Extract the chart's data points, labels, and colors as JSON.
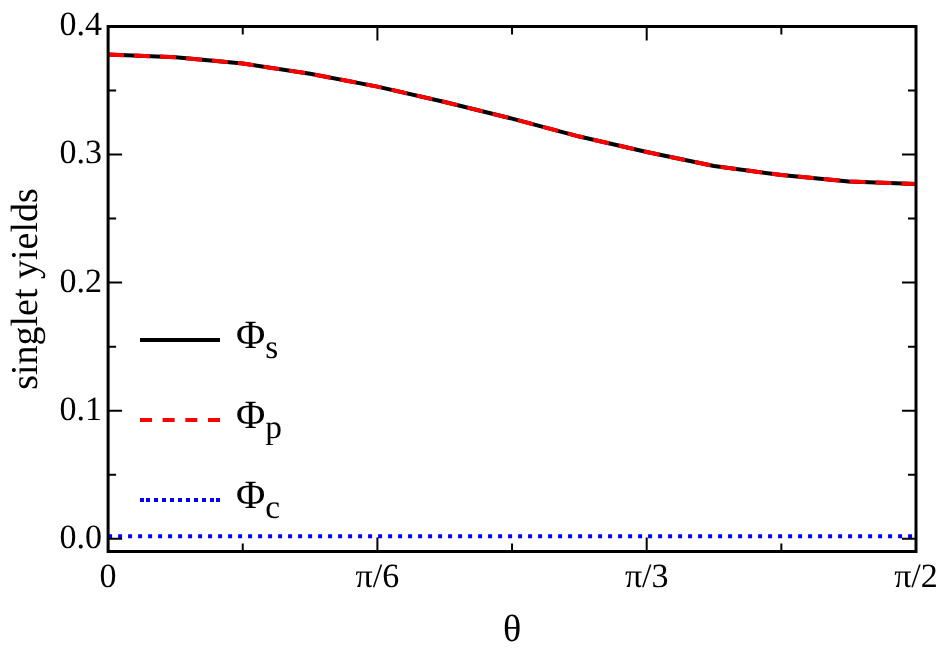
{
  "chart_data": {
    "type": "line",
    "xlabel": "θ",
    "ylabel": "singlet yields",
    "x": [
      0,
      0.1309,
      0.2618,
      0.3927,
      0.5236,
      0.6545,
      0.7854,
      0.9163,
      1.0472,
      1.1781,
      1.309,
      1.4399,
      1.5708
    ],
    "series": [
      {
        "name": "Φ$_{s}$",
        "color": "#000000",
        "line_style": "solid",
        "values": [
          0.378,
          0.376,
          0.371,
          0.363,
          0.353,
          0.341,
          0.328,
          0.314,
          0.302,
          0.291,
          0.284,
          0.279,
          0.277
        ]
      },
      {
        "name": "Φ$_{p}$",
        "color": "#ff0000",
        "line_style": "dashed",
        "values": [
          0.378,
          0.376,
          0.371,
          0.363,
          0.353,
          0.341,
          0.328,
          0.314,
          0.302,
          0.291,
          0.284,
          0.279,
          0.277
        ]
      },
      {
        "name": "Φ$_{c}$",
        "color": "#0000ff",
        "line_style": "dotted",
        "values": [
          0.002,
          0.002,
          0.002,
          0.002,
          0.002,
          0.002,
          0.002,
          0.002,
          0.002,
          0.002,
          0.002,
          0.002,
          0.002
        ]
      }
    ],
    "xlim": [
      0,
      1.5708
    ],
    "xticks": [
      {
        "value": 0,
        "label": "0"
      },
      {
        "value": 0.2618,
        "label": null
      },
      {
        "value": 0.5236,
        "label": "π/6"
      },
      {
        "value": 0.7854,
        "label": null
      },
      {
        "value": 1.0472,
        "label": "π/3"
      },
      {
        "value": 1.309,
        "label": null
      },
      {
        "value": 1.5708,
        "label": "π/2"
      }
    ],
    "ylim": [
      -0.01,
      0.4
    ],
    "yticks": [
      {
        "value": 0,
        "label": "0.0"
      },
      {
        "value": 0.05,
        "label": null
      },
      0.1,
      {
        "value": 0.15,
        "label": null
      },
      0.2,
      {
        "value": 0.25,
        "label": null
      },
      0.3,
      {
        "value": 0.35,
        "label": null
      },
      0.4
    ],
    "legend": "left",
    "marker": "none",
    "grid": false
  }
}
